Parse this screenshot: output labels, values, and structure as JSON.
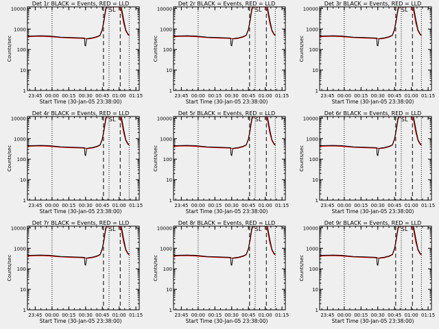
{
  "figure": {
    "background": "#efefef",
    "colors": {
      "events": "#000000",
      "lld": "#e00000"
    }
  },
  "chart_data": [
    {
      "type": "line",
      "title": "Det 1r BLACK = Events, RED = LLD",
      "xlabel": "Start Time (30-Jan-05 23:38:00)",
      "ylabel": "Counts/sec",
      "xlim": [
        "23:38",
        "01:18"
      ],
      "ylim": [
        1,
        12000
      ],
      "yscale": "log",
      "x_ticks": [
        "23:45",
        "00:00",
        "00:15",
        "00:30",
        "00:45",
        "01:00",
        "01:15"
      ],
      "y_ticks": [
        "1",
        "10",
        "100",
        "1000",
        "10000"
      ],
      "x_unit_ticks_minutes_after_start": [
        7,
        22,
        37,
        52,
        67,
        82,
        97
      ],
      "series": [
        {
          "name": "Events",
          "color": "#000000",
          "x": [
            0,
            5,
            12,
            20,
            30,
            40,
            48,
            51,
            51.5,
            52,
            53,
            55,
            58,
            62,
            65,
            67,
            68.5,
            70,
            71,
            72,
            73,
            74,
            76,
            78,
            80,
            82,
            84,
            86,
            88,
            90,
            91
          ],
          "y": [
            450,
            460,
            470,
            455,
            400,
            380,
            370,
            360,
            160,
            150,
            330,
            350,
            370,
            420,
            500,
            1000,
            3000,
            10000,
            12000,
            12000,
            12000,
            12000,
            12000,
            12000,
            12000,
            12000,
            12000,
            3000,
            900,
            550,
            520
          ]
        },
        {
          "name": "LLD",
          "color": "#e00000",
          "x": [
            0,
            5,
            12,
            20,
            30,
            40,
            48,
            52,
            55,
            58,
            62,
            65,
            67,
            68.5,
            70,
            71,
            72,
            82,
            83,
            84,
            86,
            88,
            90,
            91
          ],
          "y": [
            420,
            430,
            440,
            420,
            380,
            360,
            350,
            340,
            330,
            350,
            400,
            480,
            900,
            2500,
            8000,
            12000,
            12000,
            12000,
            12000,
            8000,
            2000,
            800,
            520,
            480
          ]
        }
      ],
      "vlines": [
        {
          "x": 22,
          "style": "dotted"
        },
        {
          "x": 68,
          "style": "dashed"
        },
        {
          "x": 73,
          "style": "dotted"
        },
        {
          "x": 83,
          "style": "dashed"
        },
        {
          "x": 91,
          "style": "dotted"
        }
      ],
      "top_markers": [
        {
          "label": "S",
          "x": 74.5
        },
        {
          "label": "L",
          "x": 77.5
        }
      ]
    },
    {
      "type": "line",
      "title": "Det 2r BLACK = Events, RED = LLD",
      "xlabel": "Start Time (30-Jan-05 23:38:00)",
      "ylabel": "Counts/sec",
      "xlim": [
        "23:38",
        "01:18"
      ],
      "ylim": [
        1,
        12000
      ],
      "yscale": "log",
      "x_ticks": [
        "23:45",
        "00:00",
        "00:15",
        "00:30",
        "00:45",
        "01:00",
        "01:15"
      ],
      "y_ticks": [
        "1",
        "10",
        "100",
        "1000",
        "10000"
      ],
      "series_same_shape_as": "Det 1r"
    },
    {
      "type": "line",
      "title": "Det 3r BLACK = Events, RED = LLD",
      "xlabel": "Start Time (30-Jan-05 23:38:00)",
      "ylabel": "Counts/sec",
      "xlim": [
        "23:38",
        "01:18"
      ],
      "ylim": [
        1,
        12000
      ],
      "yscale": "log",
      "x_ticks": [
        "23:45",
        "00:00",
        "00:15",
        "00:30",
        "00:45",
        "01:00",
        "01:15"
      ],
      "y_ticks": [
        "1",
        "10",
        "100",
        "1000",
        "10000"
      ],
      "series_same_shape_as": "Det 1r"
    },
    {
      "type": "line",
      "title": "Det 4r BLACK = Events, RED = LLD",
      "xlabel": "Start Time (30-Jan-05 23:38:00)",
      "ylabel": "Counts/sec",
      "xlim": [
        "23:38",
        "01:18"
      ],
      "ylim": [
        1,
        12000
      ],
      "yscale": "log",
      "x_ticks": [
        "23:45",
        "00:00",
        "00:15",
        "00:30",
        "00:45",
        "01:00",
        "01:15"
      ],
      "y_ticks": [
        "1",
        "10",
        "100",
        "1000",
        "10000"
      ],
      "series_same_shape_as": "Det 1r"
    },
    {
      "type": "line",
      "title": "Det 5r BLACK = Events, RED = LLD",
      "xlabel": "Start Time (30-Jan-05 23:38:00)",
      "ylabel": "Counts/sec",
      "xlim": [
        "23:38",
        "01:18"
      ],
      "ylim": [
        1,
        12000
      ],
      "yscale": "log",
      "x_ticks": [
        "23:45",
        "00:00",
        "00:15",
        "00:30",
        "00:45",
        "01:00",
        "01:15"
      ],
      "y_ticks": [
        "1",
        "10",
        "100",
        "1000",
        "10000"
      ],
      "series_same_shape_as": "Det 1r"
    },
    {
      "type": "line",
      "title": "Det 6r BLACK = Events, RED = LLD",
      "xlabel": "Start Time (30-Jan-05 23:38:00)",
      "ylabel": "Counts/sec",
      "xlim": [
        "23:38",
        "01:18"
      ],
      "ylim": [
        1,
        12000
      ],
      "yscale": "log",
      "x_ticks": [
        "23:45",
        "00:00",
        "00:15",
        "00:30",
        "00:45",
        "01:00",
        "01:15"
      ],
      "y_ticks": [
        "1",
        "10",
        "100",
        "1000",
        "10000"
      ],
      "series_same_shape_as": "Det 1r"
    },
    {
      "type": "line",
      "title": "Det 7r BLACK = Events, RED = LLD",
      "xlabel": "Start Time (30-Jan-05 23:38:00)",
      "ylabel": "Counts/sec",
      "xlim": [
        "23:38",
        "01:18"
      ],
      "ylim": [
        1,
        12000
      ],
      "yscale": "log",
      "x_ticks": [
        "23:45",
        "00:00",
        "00:15",
        "00:30",
        "00:45",
        "01:00",
        "01:15"
      ],
      "y_ticks": [
        "1",
        "10",
        "100",
        "1000",
        "10000"
      ],
      "series_same_shape_as": "Det 1r"
    },
    {
      "type": "line",
      "title": "Det 8r BLACK = Events, RED = LLD",
      "xlabel": "Start Time (30-Jan-05 23:38:00)",
      "ylabel": "Counts/sec",
      "xlim": [
        "23:38",
        "01:18"
      ],
      "ylim": [
        1,
        12000
      ],
      "yscale": "log",
      "x_ticks": [
        "23:45",
        "00:00",
        "00:15",
        "00:30",
        "00:45",
        "01:00",
        "01:15"
      ],
      "y_ticks": [
        "1",
        "10",
        "100",
        "1000",
        "10000"
      ],
      "series_same_shape_as": "Det 1r"
    },
    {
      "type": "line",
      "title": "Det 9r BLACK = Events, RED = LLD",
      "xlabel": "Start Time (30-Jan-05 23:38:00)",
      "ylabel": "Counts/sec",
      "xlim": [
        "23:38",
        "01:18"
      ],
      "ylim": [
        1,
        12000
      ],
      "yscale": "log",
      "x_ticks": [
        "23:45",
        "00:00",
        "00:15",
        "00:30",
        "00:45",
        "01:00",
        "01:15"
      ],
      "y_ticks": [
        "1",
        "10",
        "100",
        "1000",
        "10000"
      ],
      "series_same_shape_as": "Det 1r"
    }
  ]
}
